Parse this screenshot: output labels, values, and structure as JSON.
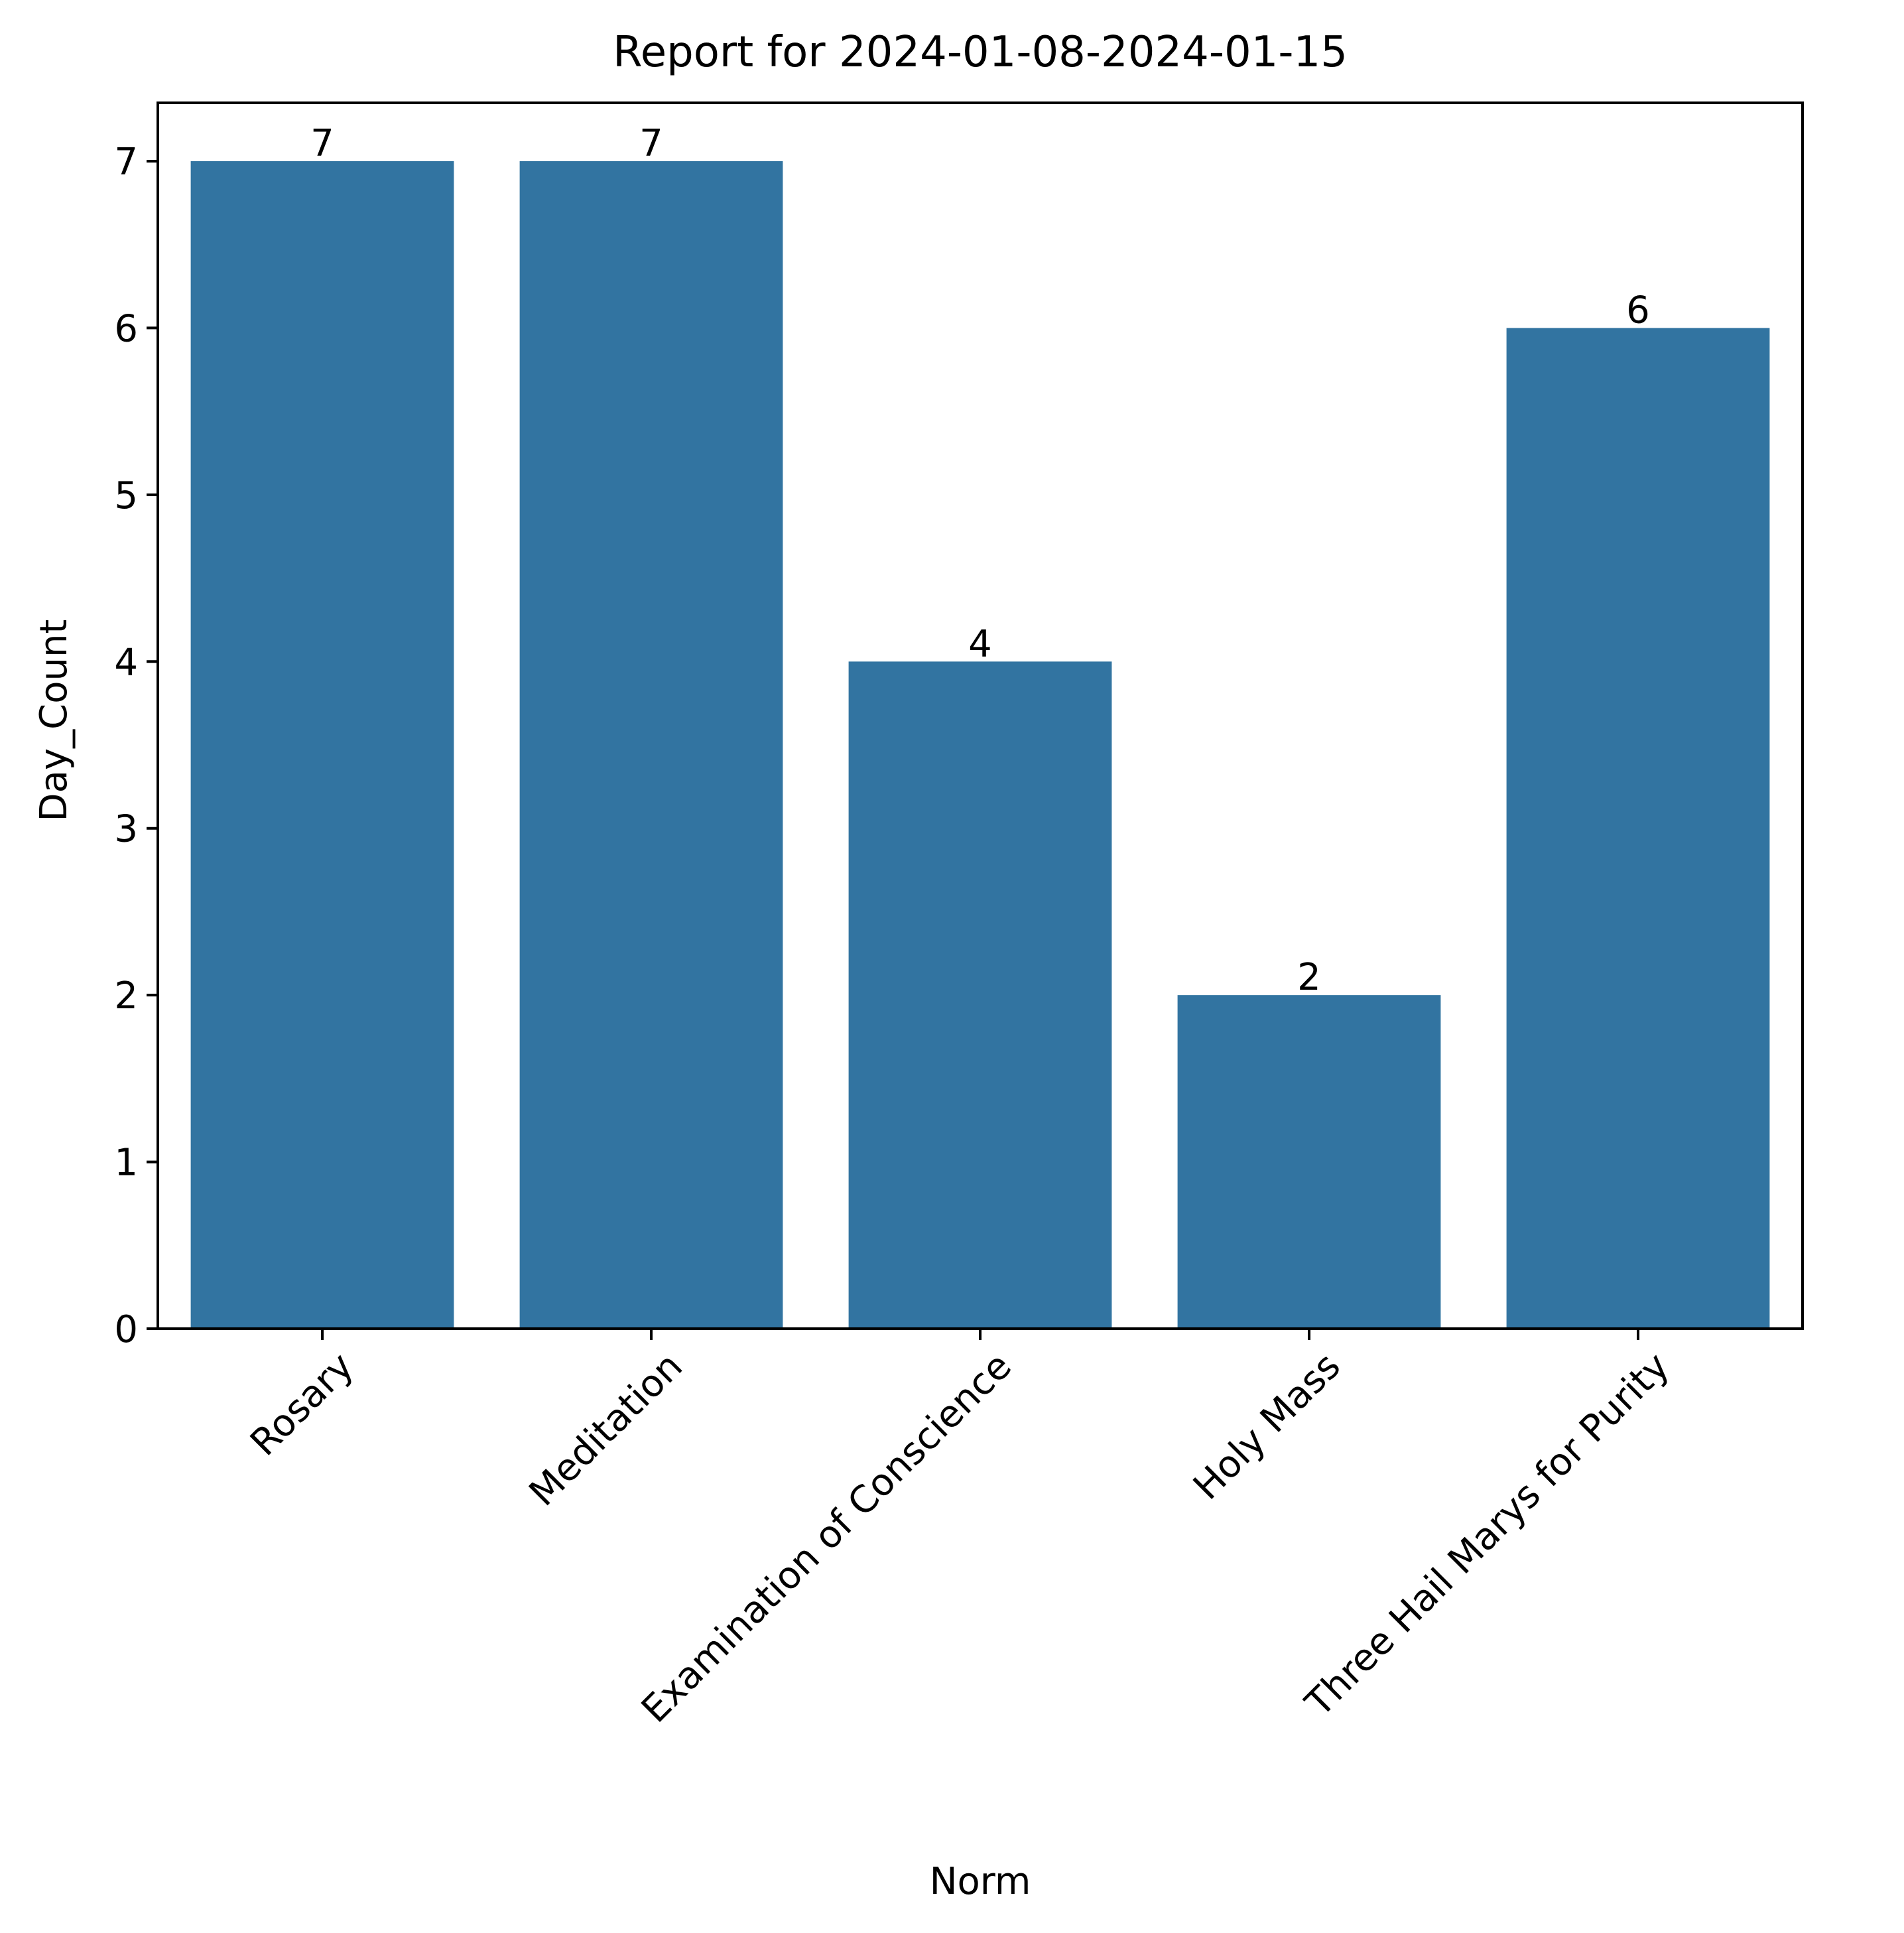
{
  "chart_data": {
    "type": "bar",
    "title": "Report for 2024-01-08-2024-01-15",
    "xlabel": "Norm",
    "ylabel": "Day_Count",
    "categories": [
      "Rosary",
      "Meditation",
      "Examination of Conscience",
      "Holy Mass",
      "Three Hail Marys for Purity"
    ],
    "values": [
      7,
      7,
      4,
      2,
      6
    ],
    "data_labels": [
      "7",
      "7",
      "4",
      "2",
      "6"
    ],
    "yticks": [
      0,
      1,
      2,
      3,
      4,
      5,
      6,
      7
    ],
    "ylim": [
      0,
      7.35
    ],
    "xtick_rotation": 45,
    "grid": false,
    "legend": "none",
    "bar_color": "#3274a1",
    "axis_color": "#000000"
  }
}
